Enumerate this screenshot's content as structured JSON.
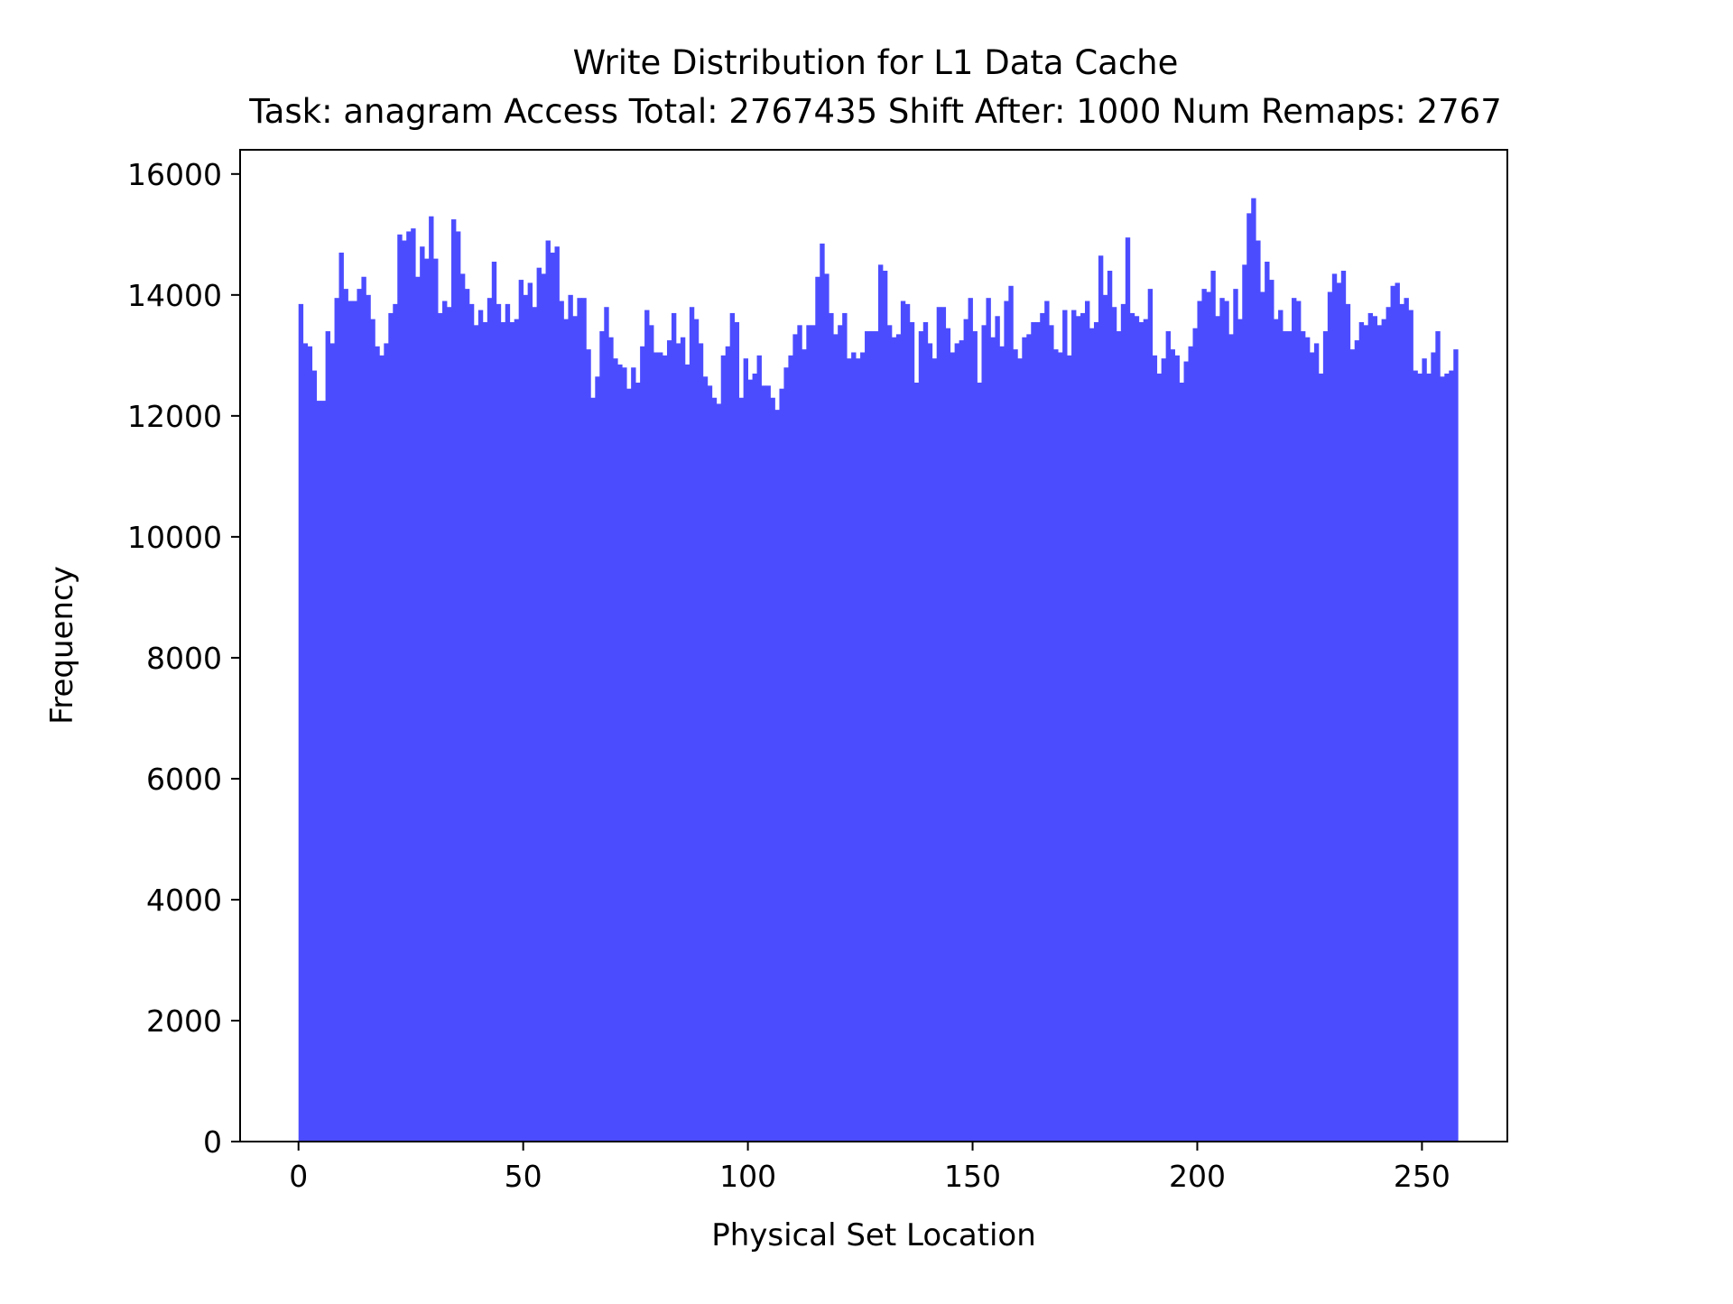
{
  "chart_data": {
    "type": "bar",
    "title": "Write Distribution for L1 Data Cache",
    "subtitle": "Task: anagram Access Total: 2767435 Shift After: 1000 Num Remaps: 2767",
    "xlabel": "Physical Set Location",
    "ylabel": "Frequency",
    "xlim": [
      -13,
      269
    ],
    "ylim": [
      0,
      16400
    ],
    "xticks": [
      0,
      50,
      100,
      150,
      200,
      250
    ],
    "yticks": [
      0,
      2000,
      4000,
      6000,
      8000,
      10000,
      12000,
      14000,
      16000
    ],
    "bar_color": "#4c4cff",
    "grid": false,
    "legend": "none",
    "x_start": 0,
    "bin_width": 1,
    "values": [
      13850,
      13200,
      13150,
      12750,
      12250,
      12250,
      13400,
      13200,
      13950,
      14700,
      14100,
      13900,
      13900,
      14100,
      14300,
      14000,
      13600,
      13150,
      13000,
      13200,
      13700,
      13850,
      15000,
      14900,
      15050,
      15100,
      14300,
      14800,
      14600,
      15300,
      14600,
      13700,
      13900,
      13800,
      15250,
      15050,
      14350,
      14100,
      13850,
      13500,
      13750,
      13550,
      13950,
      14550,
      13850,
      13550,
      13850,
      13550,
      13600,
      14250,
      14000,
      14200,
      13800,
      14450,
      14350,
      14900,
      14700,
      14800,
      13900,
      13600,
      14000,
      13650,
      13950,
      13950,
      13100,
      12300,
      12650,
      13400,
      13800,
      13300,
      12950,
      12850,
      12800,
      12450,
      12800,
      12550,
      13150,
      13750,
      13500,
      13050,
      13050,
      13000,
      13250,
      13700,
      13200,
      13300,
      12850,
      13800,
      13600,
      13200,
      12650,
      12500,
      12300,
      12200,
      13000,
      13150,
      13700,
      13550,
      12300,
      12950,
      12600,
      12700,
      13000,
      12500,
      12500,
      12300,
      12100,
      12450,
      12800,
      13000,
      13350,
      13500,
      13100,
      13500,
      13500,
      14300,
      14850,
      14350,
      13700,
      13350,
      13500,
      13700,
      12950,
      13050,
      12950,
      13050,
      13400,
      13400,
      13400,
      14500,
      14400,
      13500,
      13300,
      13350,
      13900,
      13850,
      13550,
      12550,
      13400,
      13550,
      13200,
      12950,
      13800,
      13800,
      13450,
      13050,
      13200,
      13250,
      13600,
      13950,
      13400,
      12550,
      13500,
      13950,
      13300,
      13650,
      13150,
      13900,
      14150,
      13100,
      12950,
      13300,
      13350,
      13550,
      13550,
      13700,
      13900,
      13500,
      13100,
      13050,
      13750,
      13000,
      13750,
      13650,
      13700,
      13900,
      13450,
      13550,
      14650,
      14000,
      14400,
      13800,
      13400,
      13850,
      14950,
      13700,
      13650,
      13550,
      13600,
      14100,
      13000,
      12700,
      12950,
      13400,
      13100,
      13000,
      12550,
      12900,
      13150,
      13450,
      13900,
      14100,
      14050,
      14400,
      13650,
      13950,
      13900,
      13350,
      14100,
      13600,
      14500,
      15350,
      15600,
      14900,
      14050,
      14550,
      14250,
      13600,
      13750,
      13400,
      13400,
      13950,
      13900,
      13400,
      13300,
      13050,
      13200,
      12700,
      13400,
      14050,
      14350,
      14200,
      14400,
      13850,
      13100,
      13250,
      13550,
      13500,
      13700,
      13650,
      13500,
      13600,
      13800,
      14150,
      14200,
      13850,
      13950,
      13750,
      12750,
      12700,
      12950,
      12700,
      13050,
      13400,
      12650,
      12700,
      12750,
      13100
    ]
  }
}
